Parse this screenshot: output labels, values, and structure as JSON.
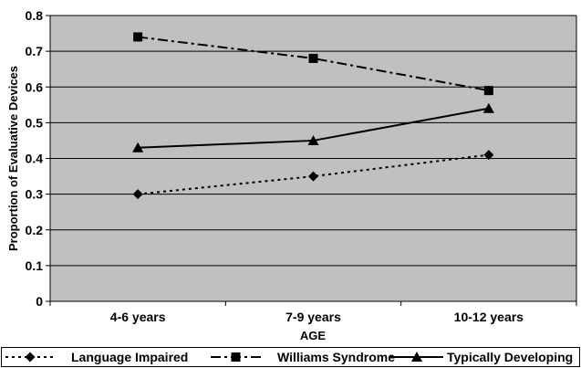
{
  "chart_data": {
    "type": "line",
    "title": "",
    "xlabel": "AGE",
    "ylabel": "Proportion of Evaluative Devices",
    "categories": [
      "4-6 years",
      "7-9 years",
      "10-12 years"
    ],
    "ylim": [
      0,
      0.8
    ],
    "yticks": [
      "0",
      "0.1",
      "0.2",
      "0.3",
      "0.4",
      "0.5",
      "0.6",
      "0.7",
      "0.8"
    ],
    "grid": true,
    "legend_position": "bottom",
    "plot_background": "#c0c0c0",
    "series": [
      {
        "name": "Language Impaired",
        "values": [
          0.3,
          0.35,
          0.41
        ],
        "marker": "diamond",
        "line": "dotted"
      },
      {
        "name": "Williams Syndrome",
        "values": [
          0.74,
          0.68,
          0.59
        ],
        "marker": "square",
        "line": "dash-dot"
      },
      {
        "name": "Typically Developing",
        "values": [
          0.43,
          0.45,
          0.54
        ],
        "marker": "triangle",
        "line": "solid"
      }
    ]
  }
}
